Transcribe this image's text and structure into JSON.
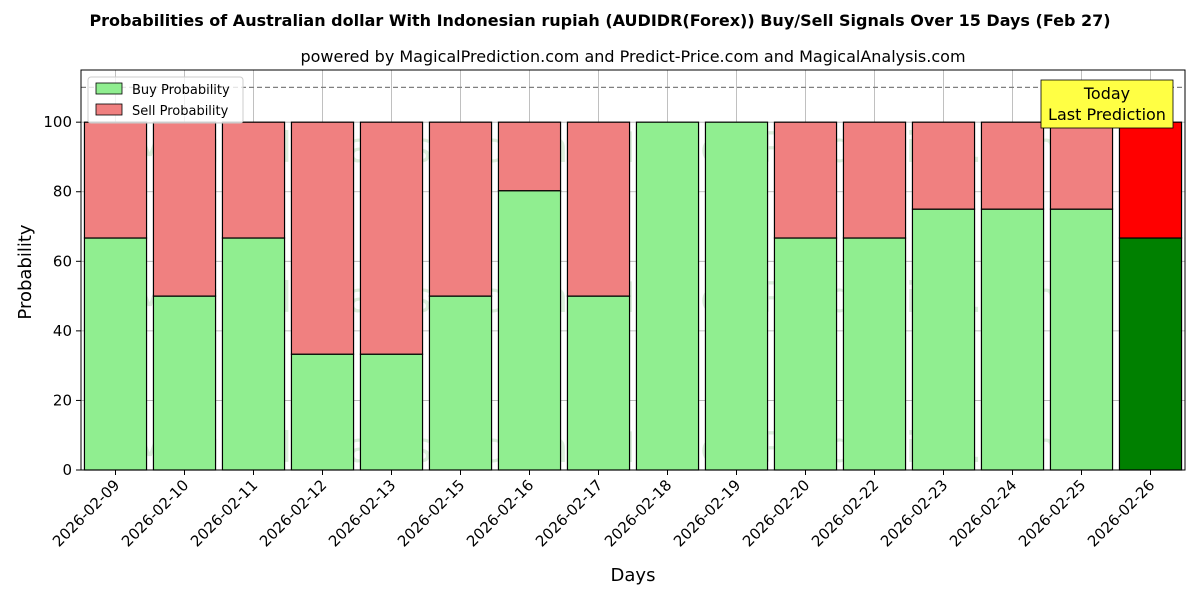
{
  "chart_data": {
    "type": "bar",
    "stacked": true,
    "title": "Probabilities of Australian dollar With Indonesian rupiah (AUDIDR(Forex)) Buy/Sell Signals Over 15 Days (Feb 27)",
    "subtitle": "powered by MagicalPrediction.com and Predict-Price.com and MagicalAnalysis.com",
    "xlabel": "Days",
    "ylabel": "Probability",
    "ylim": [
      0,
      115
    ],
    "yticks": [
      0,
      20,
      40,
      60,
      80,
      100
    ],
    "grid": true,
    "reference_line": 110,
    "categories": [
      "2026-02-09",
      "2026-02-10",
      "2026-02-11",
      "2026-02-12",
      "2026-02-13",
      "2026-02-15",
      "2026-02-16",
      "2026-02-17",
      "2026-02-18",
      "2026-02-19",
      "2026-02-20",
      "2026-02-22",
      "2026-02-23",
      "2026-02-24",
      "2026-02-25",
      "2026-02-26"
    ],
    "series": [
      {
        "name": "Buy Probability",
        "values": [
          66.7,
          50,
          66.7,
          33.3,
          33.3,
          50,
          80.3,
          50,
          100,
          100,
          66.7,
          66.7,
          75,
          75,
          75,
          66.7
        ]
      },
      {
        "name": "Sell Probability",
        "values": [
          33.3,
          50,
          33.3,
          66.7,
          66.7,
          50,
          19.7,
          50,
          0,
          0,
          33.3,
          33.3,
          25,
          25,
          25,
          33.3
        ]
      }
    ],
    "legend": {
      "position": "top-left",
      "entries": [
        "Buy Probability",
        "Sell Probability"
      ]
    },
    "annotation": {
      "text_line1": "Today",
      "text_line2": "Last Prediction",
      "position": "top-right"
    },
    "watermarks": [
      "MagicalAnalysis.com",
      "MagicalPrediction.com"
    ]
  },
  "colors": {
    "buy": "#90ee90",
    "sell": "#f08080",
    "buy_today": "#008000",
    "sell_today": "#ff0000",
    "annotation_bg": "#ffff44"
  }
}
